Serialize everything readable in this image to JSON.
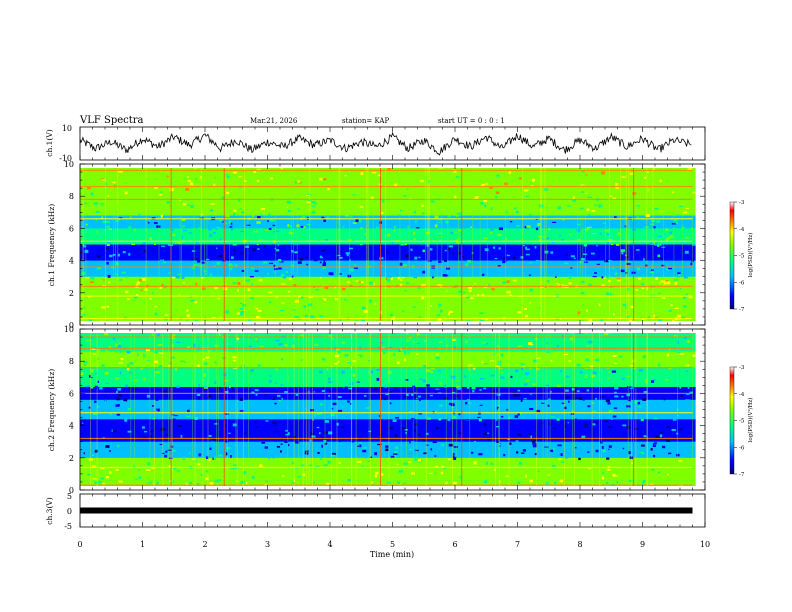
{
  "header": {
    "title": "VLF Spectra",
    "date": "Mar.21, 2026",
    "station": "station= KAP",
    "start_ut": "start  UT =   0 : 0  : 1"
  },
  "chart_data": [
    {
      "type": "line",
      "panel": "ch1-waveform",
      "ylabel": "ch.1(V)",
      "ylim": [
        -10,
        10
      ],
      "y_tick_labels": [
        "10",
        "-10"
      ],
      "x": [
        0.0,
        0.25,
        0.5,
        0.75,
        1.0,
        1.25,
        1.5,
        1.75,
        2.0,
        2.25,
        2.5,
        2.75,
        3.0,
        3.25,
        3.5,
        3.75,
        4.0,
        4.25,
        4.5,
        4.75,
        5.0,
        5.25,
        5.5,
        5.75,
        6.0,
        6.25,
        6.5,
        6.75,
        7.0,
        7.25,
        7.5,
        7.75,
        8.0,
        8.25,
        8.5,
        8.75,
        9.0,
        9.25,
        9.5,
        9.8
      ],
      "values": [
        2,
        -3,
        1,
        -4,
        3,
        -2,
        4,
        -1,
        5,
        -3,
        2,
        -4,
        1,
        -2,
        3,
        -1,
        2,
        -3,
        1,
        -2,
        4,
        -3,
        2,
        -5,
        3,
        -2,
        4,
        -3,
        5,
        -2,
        3,
        -4,
        2,
        -3,
        4,
        -2,
        3,
        -4,
        2,
        -1
      ]
    },
    {
      "type": "heatmap",
      "panel": "ch1-spectrogram",
      "ylabel": "ch.1 Frequency (kHz)",
      "ylim": [
        0,
        10
      ],
      "y_tick_labels": [
        "0",
        "2",
        "4",
        "6",
        "8",
        "10"
      ],
      "colorbar": {
        "label": "log(PSD)(V²/Hz)",
        "range": [
          -7,
          -3
        ],
        "tick_labels": [
          "-3",
          "-4",
          "-5",
          "-6",
          "-7"
        ]
      },
      "bands": [
        {
          "f0": 0,
          "f1": 0.6,
          "level": 0.55
        },
        {
          "f0": 0.6,
          "f1": 2.2,
          "level": 0.58
        },
        {
          "f0": 2.2,
          "f1": 3.0,
          "level": 0.62
        },
        {
          "f0": 3.0,
          "f1": 4.0,
          "level": 0.32
        },
        {
          "f0": 4.0,
          "f1": 5.0,
          "level": 0.22
        },
        {
          "f0": 5.0,
          "f1": 6.0,
          "level": 0.45
        },
        {
          "f0": 6.0,
          "f1": 6.8,
          "level": 0.35
        },
        {
          "f0": 6.8,
          "f1": 8.2,
          "level": 0.55
        },
        {
          "f0": 8.2,
          "f1": 10,
          "level": 0.62
        }
      ],
      "lines_khz": [
        0.4,
        1.8,
        2.4,
        3.6,
        5.2,
        6.6,
        7.8,
        8.6,
        9.6
      ]
    },
    {
      "type": "heatmap",
      "panel": "ch2-spectrogram",
      "ylabel": "ch.2 Frequency (kHz)",
      "ylim": [
        0,
        10
      ],
      "y_tick_labels": [
        "0",
        "2",
        "4",
        "6",
        "8",
        "10"
      ],
      "colorbar": {
        "label": "log(PSD)(V²/Hz)",
        "range": [
          -7,
          -3
        ],
        "tick_labels": [
          "-3",
          "-4",
          "-5",
          "-6",
          "-7"
        ]
      },
      "bands": [
        {
          "f0": 0,
          "f1": 0.6,
          "level": 0.55
        },
        {
          "f0": 0.6,
          "f1": 2.0,
          "level": 0.55
        },
        {
          "f0": 2.0,
          "f1": 3.0,
          "level": 0.25
        },
        {
          "f0": 3.0,
          "f1": 4.4,
          "level": 0.18
        },
        {
          "f0": 4.4,
          "f1": 5.6,
          "level": 0.3
        },
        {
          "f0": 5.6,
          "f1": 6.4,
          "level": 0.2
        },
        {
          "f0": 6.4,
          "f1": 7.6,
          "level": 0.4
        },
        {
          "f0": 7.6,
          "f1": 8.6,
          "level": 0.55
        },
        {
          "f0": 8.6,
          "f1": 10,
          "level": 0.48
        }
      ],
      "lines_khz": [
        0.3,
        1.4,
        3.2,
        4.8,
        6.0,
        7.6,
        8.8,
        9.5
      ]
    },
    {
      "type": "line",
      "panel": "ch3-waveform",
      "ylabel": "ch.3(V)",
      "ylim": [
        -5,
        5
      ],
      "y_tick_labels": [
        "5",
        "0",
        "-5"
      ],
      "x": [
        0,
        9.8
      ],
      "values": [
        0,
        0
      ]
    }
  ],
  "x_axis": {
    "label": "Time  (min)",
    "range": [
      0,
      10
    ],
    "tick_labels": [
      "0",
      "1",
      "2",
      "3",
      "4",
      "5",
      "6",
      "7",
      "8",
      "9",
      "10"
    ]
  },
  "vertical_event_lines_min": [
    1.45,
    2.3,
    4.8,
    6.1,
    8.85
  ],
  "colors": {
    "colormap": [
      "#000080",
      "#0000ff",
      "#00bfff",
      "#00ff80",
      "#80ff00",
      "#ffff00",
      "#ff8000",
      "#ff0000",
      "#ffffff"
    ]
  }
}
